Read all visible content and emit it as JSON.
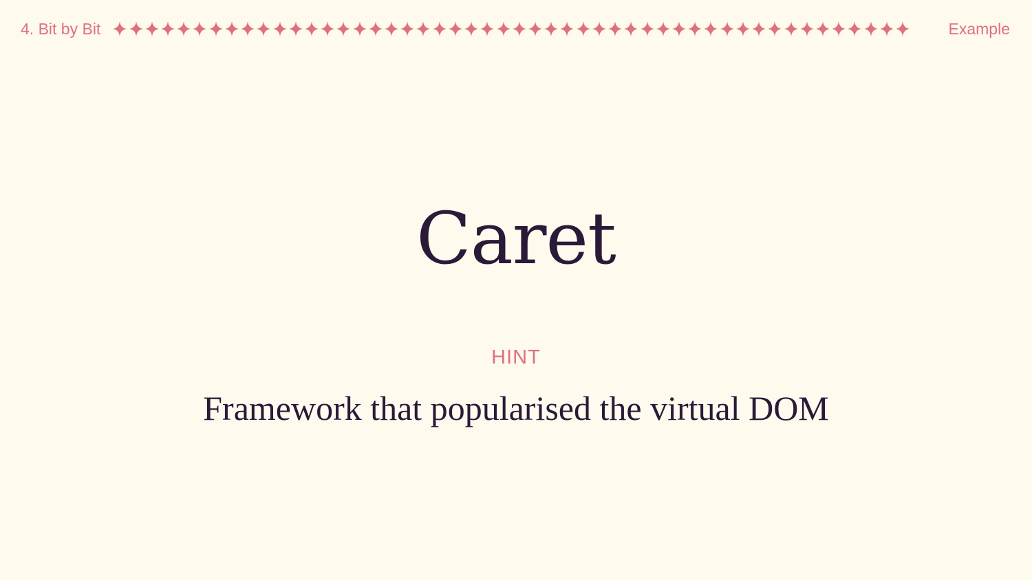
{
  "header": {
    "section_label": "4. Bit by Bit",
    "tag_label": "Example",
    "divider_icon": "four-point-star-icon",
    "divider_icon_count": 50
  },
  "slide": {
    "answer": "Caret",
    "hint_label": "HINT",
    "hint_text": "Framework that popularised the virtual DOM"
  },
  "colors": {
    "background": "#fefaee",
    "accent": "#e0707f",
    "text": "#2a1a37"
  }
}
